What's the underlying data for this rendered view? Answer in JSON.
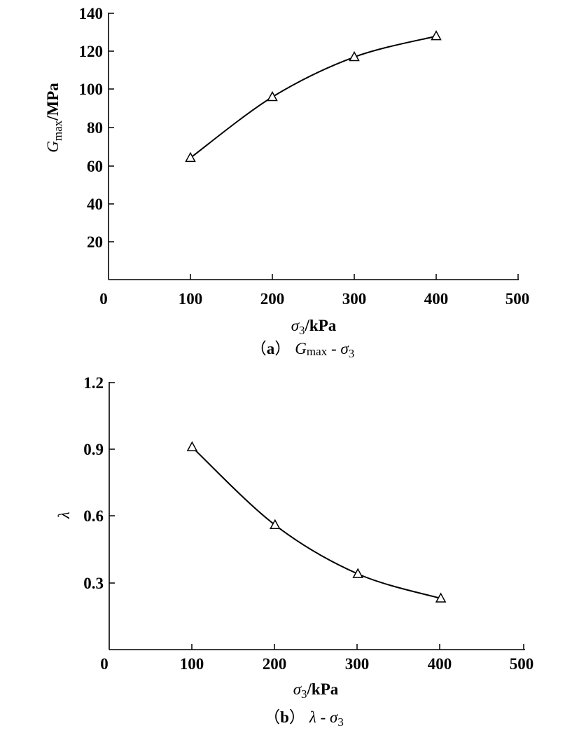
{
  "chart_data": [
    {
      "type": "line",
      "caption": {
        "prefix": "（",
        "letter": "a",
        "suffix": "）",
        "var": "G",
        "var_sub": "max",
        "dash": " - ",
        "sigma": "σ",
        "sigma_sub": "3"
      },
      "xlabel": {
        "sigma": "σ",
        "sub": "3",
        "unit": "/kPa"
      },
      "ylabel": {
        "var": "G",
        "sub": "max",
        "unit": "/MPa"
      },
      "xlim": [
        0,
        500
      ],
      "ylim": [
        0,
        140
      ],
      "xticks": [
        "0",
        "100",
        "200",
        "300",
        "400",
        "500"
      ],
      "yticks": [
        "20",
        "40",
        "60",
        "80",
        "100",
        "120",
        "140"
      ],
      "marker": "open-triangle",
      "grid": false,
      "series": [
        {
          "x": [
            100,
            200,
            300,
            400
          ],
          "y": [
            64,
            96,
            117,
            128
          ]
        }
      ]
    },
    {
      "type": "line",
      "caption": {
        "prefix": "（",
        "letter": "b",
        "suffix": "）",
        "var": "λ",
        "dash": " - ",
        "sigma": "σ",
        "sigma_sub": "3"
      },
      "xlabel": {
        "sigma": "σ",
        "sub": "3",
        "unit": "/kPa"
      },
      "ylabel": {
        "var": "λ"
      },
      "xlim": [
        0,
        500
      ],
      "ylim": [
        0,
        1.2
      ],
      "xticks": [
        "0",
        "100",
        "200",
        "300",
        "400",
        "500"
      ],
      "yticks": [
        "0.3",
        "0.6",
        "0.9",
        "1.2"
      ],
      "marker": "open-triangle",
      "grid": false,
      "series": [
        {
          "x": [
            100,
            200,
            300,
            400
          ],
          "y": [
            0.91,
            0.56,
            0.34,
            0.23
          ]
        }
      ]
    }
  ]
}
